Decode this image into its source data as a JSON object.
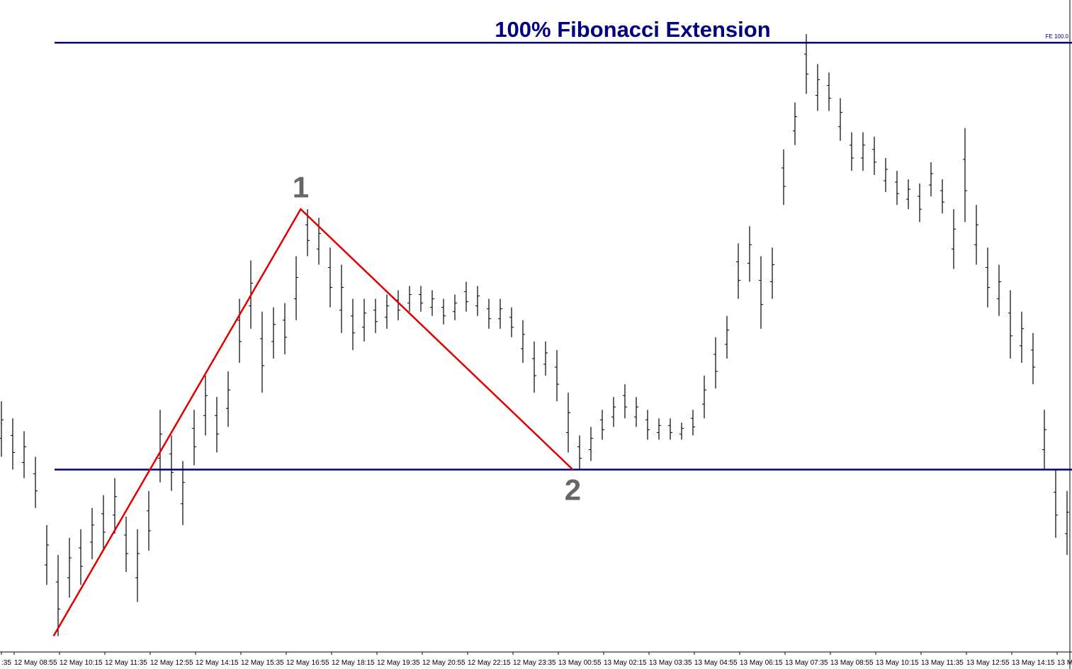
{
  "chart_data": {
    "type": "ohlc",
    "title": "100% Fibonacci Extension",
    "color": "#000000",
    "ylim": [
      -42.4,
      110
    ],
    "high": [
      16,
      12,
      9,
      3,
      -13,
      -20,
      -16,
      -14,
      -9,
      -6,
      -2,
      -11,
      -14,
      -5,
      14,
      8,
      2,
      14,
      22,
      17,
      23,
      40,
      49,
      37,
      38,
      39,
      50,
      61,
      59,
      52,
      48,
      40,
      40,
      40,
      41,
      42,
      43,
      43,
      42,
      40,
      41,
      44,
      43,
      40,
      40,
      38,
      35,
      30,
      30,
      28,
      18,
      8,
      10,
      14,
      17,
      20,
      17,
      14,
      12,
      12,
      11,
      14,
      22,
      31,
      36,
      53,
      57,
      50,
      52,
      75,
      86,
      102,
      95,
      93,
      87,
      79,
      79,
      78,
      73,
      70,
      68,
      67,
      72,
      68,
      61,
      80,
      62,
      52,
      48,
      42,
      37,
      32,
      14,
      0,
      -5
    ],
    "low": [
      3,
      0,
      -2,
      -9,
      -27,
      -39,
      -30,
      -27,
      -21,
      -19,
      -15,
      -24,
      -31,
      -19,
      -3,
      -5,
      -13,
      1,
      8,
      4,
      10,
      25,
      33,
      18,
      26,
      27,
      35,
      50,
      48,
      38,
      32,
      28,
      30,
      32,
      33,
      35,
      37,
      37,
      36,
      34,
      35,
      37,
      36,
      33,
      33,
      31,
      25,
      18,
      22,
      16,
      4,
      0,
      2,
      7,
      10,
      12,
      10,
      7,
      7,
      7,
      7,
      8,
      12,
      19,
      26,
      40,
      44,
      33,
      40,
      62,
      76,
      88,
      84,
      84,
      77,
      70,
      70,
      69,
      65,
      62,
      61,
      58,
      64,
      60,
      47,
      58,
      48,
      38,
      36,
      26,
      25,
      20,
      0,
      -16,
      -20
    ],
    "zigzag": {
      "color": "#e00000",
      "x": [
        4.6,
        26.4,
        50.4
      ],
      "values": [
        -39,
        61,
        0
      ],
      "labels": [
        null,
        "1",
        "2"
      ]
    },
    "hlines": [
      {
        "value": 100,
        "label": "FE 100.0",
        "color": "#000080"
      },
      {
        "value": 0,
        "color": "#000080"
      }
    ],
    "x_labels": [
      ":35",
      "12 May 08:55",
      "12 May 10:15",
      "12 May 11:35",
      "12 May 12:55",
      "12 May 14:15",
      "12 May 15:35",
      "12 May 16:55",
      "12 May 18:15",
      "12 May 19:35",
      "12 May 20:55",
      "12 May 22:15",
      "12 May 23:35",
      "13 May 00:55",
      "13 May 02:15",
      "13 May 03:35",
      "13 May 04:55",
      "13 May 06:15",
      "13 May 07:35",
      "13 May 08:55",
      "13 May 10:15",
      "13 May 11:35",
      "13 May 12:55",
      "13 May 14:15",
      "13 M"
    ]
  }
}
